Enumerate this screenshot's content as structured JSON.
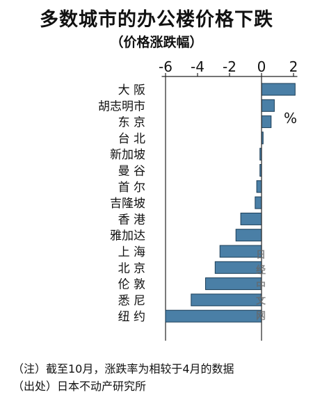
{
  "title": "多数城市的办公楼价格下跌",
  "subtitle": "（价格涨跌幅）",
  "unit": "%",
  "watermark": [
    "日",
    "经",
    "中",
    "文",
    "网"
  ],
  "notes": {
    "note1": "（注）截至10月，涨跌率为相较于4月的数据",
    "note2": "（出处）日本不动产研究所"
  },
  "colors": {
    "bar": "#4a7fa6",
    "bar_edge": "#1a3d57",
    "axis": "#222222"
  },
  "chart_data": {
    "type": "bar",
    "orientation": "horizontal",
    "title": "多数城市的办公楼价格下跌",
    "subtitle": "（价格涨跌幅）",
    "xlabel": "%",
    "xlim": [
      -6.5,
      2.5
    ],
    "xticks": [
      -6,
      -4,
      -2,
      0,
      2
    ],
    "xtick_labels": [
      "-6",
      "-4",
      "-2",
      "0",
      "2"
    ],
    "categories": [
      "大 阪",
      "胡志明市",
      "东 京",
      "台 北",
      "新加坡",
      "曼 谷",
      "首 尔",
      "吉隆坡",
      "香 港",
      "雅加达",
      "上 海",
      "北 京",
      "伦 敦",
      "悉 尼",
      "纽 约"
    ],
    "values": [
      2.1,
      0.8,
      0.6,
      0.1,
      -0.1,
      -0.1,
      -0.3,
      -0.4,
      -1.3,
      -1.6,
      -2.6,
      -2.9,
      -3.5,
      -4.4,
      -6.0
    ],
    "grid": false
  }
}
